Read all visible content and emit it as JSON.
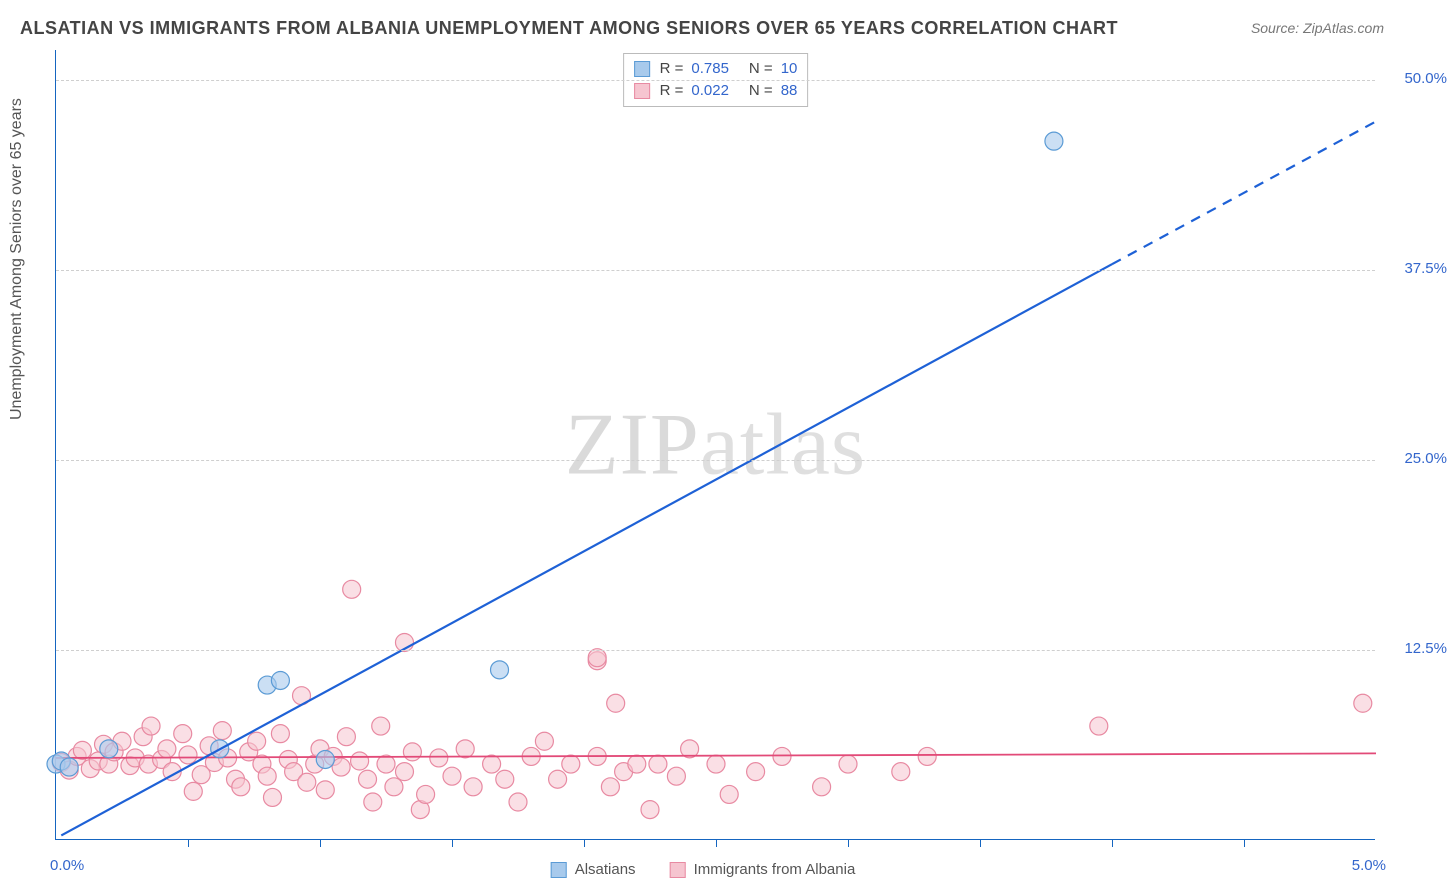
{
  "title": "ALSATIAN VS IMMIGRANTS FROM ALBANIA UNEMPLOYMENT AMONG SENIORS OVER 65 YEARS CORRELATION CHART",
  "source": "Source: ZipAtlas.com",
  "watermark": "ZIPatlas",
  "chart": {
    "type": "scatter",
    "xlim": [
      0,
      5.0
    ],
    "ylim": [
      0,
      52.0
    ],
    "ylabel": "Unemployment Among Seniors over 65 years",
    "x_origin_label": "0.0%",
    "x_max_label": "5.0%",
    "yticks": [
      12.5,
      25.0,
      37.5,
      50.0
    ],
    "ytick_labels": [
      "12.5%",
      "25.0%",
      "37.5%",
      "50.0%"
    ],
    "xticks": [
      0.5,
      1.0,
      1.5,
      2.0,
      2.5,
      3.0,
      3.5,
      4.0,
      4.5
    ],
    "grid_color": "#d8d8d8",
    "axis_color": "#1565c0",
    "background_color": "#ffffff",
    "legend_top": {
      "series1": {
        "swatch": "blue",
        "r_label": "R =",
        "r_val": "0.785",
        "n_label": "N =",
        "n_val": "10"
      },
      "series2": {
        "swatch": "pink",
        "r_label": "R =",
        "r_val": "0.022",
        "n_label": "N =",
        "n_val": "88"
      }
    },
    "legend_bottom": {
      "alsatians": "Alsatians",
      "albania": "Immigrants from Albania"
    },
    "series_blue": {
      "name": "Alsatians",
      "marker_color": "#a8caec",
      "marker_border": "#5b9bd5",
      "marker_radius": 9,
      "line_color": "#1e61d6",
      "line_width": 2.2,
      "trend_start": [
        0.02,
        0.3
      ],
      "trend_solid_end": [
        4.0,
        37.9
      ],
      "trend_dash_end": [
        5.0,
        47.3
      ],
      "points": [
        [
          0.0,
          5.0
        ],
        [
          0.02,
          5.2
        ],
        [
          0.05,
          4.8
        ],
        [
          0.2,
          6.0
        ],
        [
          0.62,
          6.0
        ],
        [
          0.8,
          10.2
        ],
        [
          0.85,
          10.5
        ],
        [
          1.02,
          5.3
        ],
        [
          1.68,
          11.2
        ],
        [
          3.78,
          46.0
        ]
      ]
    },
    "series_pink": {
      "name": "Immigrants from Albania",
      "marker_color": "#f6c5d0",
      "marker_border": "#e88aa2",
      "marker_radius": 9,
      "line_color": "#e24a78",
      "line_width": 1.8,
      "trend_start": [
        0.0,
        5.4
      ],
      "trend_end": [
        5.0,
        5.7
      ],
      "points": [
        [
          0.02,
          5.1
        ],
        [
          0.05,
          4.6
        ],
        [
          0.08,
          5.5
        ],
        [
          0.1,
          5.9
        ],
        [
          0.13,
          4.7
        ],
        [
          0.16,
          5.2
        ],
        [
          0.18,
          6.3
        ],
        [
          0.2,
          5.0
        ],
        [
          0.22,
          5.8
        ],
        [
          0.25,
          6.5
        ],
        [
          0.28,
          4.9
        ],
        [
          0.3,
          5.4
        ],
        [
          0.33,
          6.8
        ],
        [
          0.35,
          5.0
        ],
        [
          0.36,
          7.5
        ],
        [
          0.4,
          5.3
        ],
        [
          0.42,
          6.0
        ],
        [
          0.44,
          4.5
        ],
        [
          0.48,
          7.0
        ],
        [
          0.5,
          5.6
        ],
        [
          0.52,
          3.2
        ],
        [
          0.55,
          4.3
        ],
        [
          0.58,
          6.2
        ],
        [
          0.6,
          5.1
        ],
        [
          0.63,
          7.2
        ],
        [
          0.65,
          5.4
        ],
        [
          0.68,
          4.0
        ],
        [
          0.7,
          3.5
        ],
        [
          0.73,
          5.8
        ],
        [
          0.76,
          6.5
        ],
        [
          0.78,
          5.0
        ],
        [
          0.8,
          4.2
        ],
        [
          0.82,
          2.8
        ],
        [
          0.85,
          7.0
        ],
        [
          0.88,
          5.3
        ],
        [
          0.9,
          4.5
        ],
        [
          0.93,
          9.5
        ],
        [
          0.95,
          3.8
        ],
        [
          0.98,
          5.0
        ],
        [
          1.0,
          6.0
        ],
        [
          1.02,
          3.3
        ],
        [
          1.05,
          5.5
        ],
        [
          1.08,
          4.8
        ],
        [
          1.1,
          6.8
        ],
        [
          1.12,
          16.5
        ],
        [
          1.15,
          5.2
        ],
        [
          1.18,
          4.0
        ],
        [
          1.2,
          2.5
        ],
        [
          1.23,
          7.5
        ],
        [
          1.25,
          5.0
        ],
        [
          1.28,
          3.5
        ],
        [
          1.32,
          13.0
        ],
        [
          1.32,
          4.5
        ],
        [
          1.35,
          5.8
        ],
        [
          1.38,
          2.0
        ],
        [
          1.4,
          3.0
        ],
        [
          1.45,
          5.4
        ],
        [
          1.5,
          4.2
        ],
        [
          1.55,
          6.0
        ],
        [
          1.58,
          3.5
        ],
        [
          1.65,
          5.0
        ],
        [
          1.7,
          4.0
        ],
        [
          1.75,
          2.5
        ],
        [
          1.8,
          5.5
        ],
        [
          1.85,
          6.5
        ],
        [
          1.9,
          4.0
        ],
        [
          1.95,
          5.0
        ],
        [
          2.05,
          11.8
        ],
        [
          2.05,
          12.0
        ],
        [
          2.05,
          5.5
        ],
        [
          2.1,
          3.5
        ],
        [
          2.12,
          9.0
        ],
        [
          2.15,
          4.5
        ],
        [
          2.2,
          5.0
        ],
        [
          2.25,
          2.0
        ],
        [
          2.28,
          5.0
        ],
        [
          2.35,
          4.2
        ],
        [
          2.4,
          6.0
        ],
        [
          2.5,
          5.0
        ],
        [
          2.55,
          3.0
        ],
        [
          2.65,
          4.5
        ],
        [
          2.75,
          5.5
        ],
        [
          2.9,
          3.5
        ],
        [
          3.0,
          5.0
        ],
        [
          3.2,
          4.5
        ],
        [
          3.3,
          5.5
        ],
        [
          3.95,
          7.5
        ],
        [
          4.95,
          9.0
        ]
      ]
    }
  }
}
